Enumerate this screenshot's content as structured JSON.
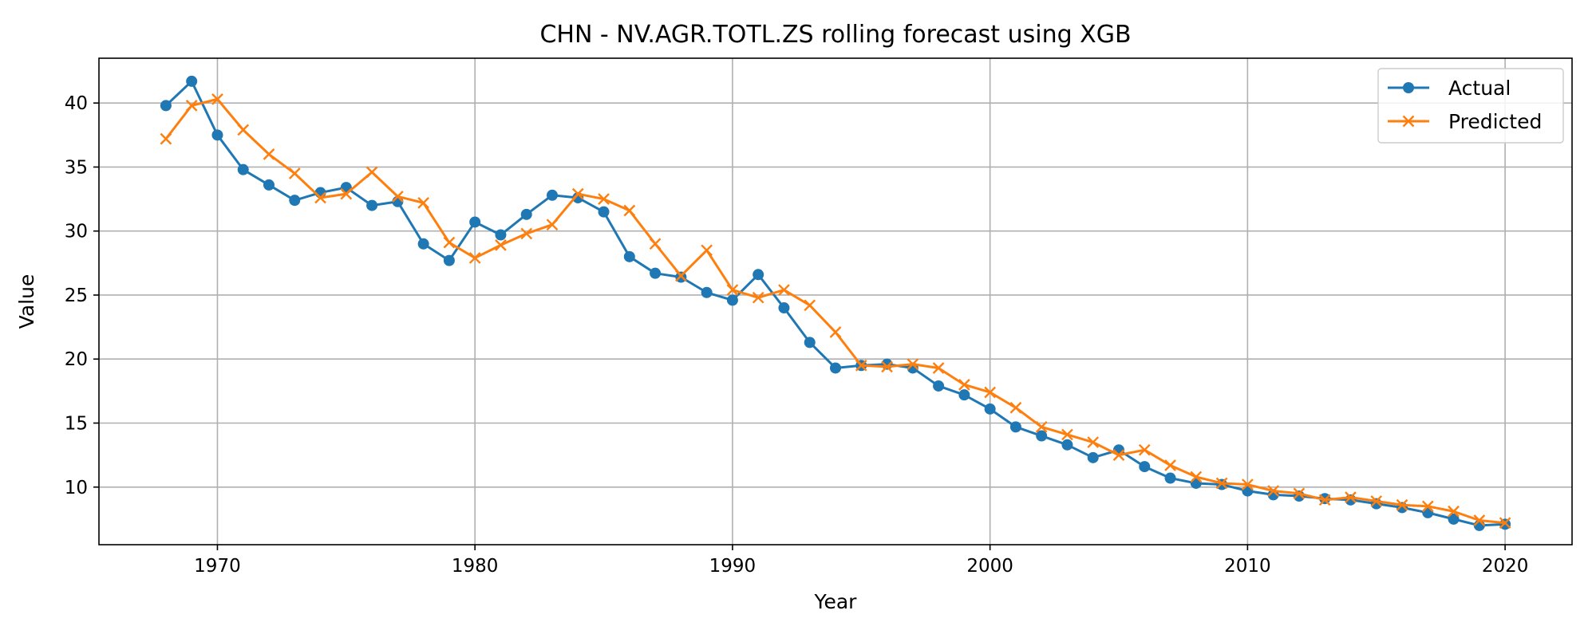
{
  "chart_data": {
    "type": "line",
    "title": "CHN - NV.AGR.TOTL.ZS rolling forecast using XGB",
    "xlabel": "Year",
    "ylabel": "Value",
    "xlim": [
      1965.4,
      2022.6
    ],
    "ylim": [
      5.5,
      43.5
    ],
    "xticks": [
      1970,
      1980,
      1990,
      2000,
      2010,
      2020
    ],
    "yticks": [
      10,
      15,
      20,
      25,
      30,
      35,
      40
    ],
    "grid": true,
    "legend_position": "top-right",
    "x": [
      1968,
      1969,
      1970,
      1971,
      1972,
      1973,
      1974,
      1975,
      1976,
      1977,
      1978,
      1979,
      1980,
      1981,
      1982,
      1983,
      1984,
      1985,
      1986,
      1987,
      1988,
      1989,
      1990,
      1991,
      1992,
      1993,
      1994,
      1995,
      1996,
      1997,
      1998,
      1999,
      2000,
      2001,
      2002,
      2003,
      2004,
      2005,
      2006,
      2007,
      2008,
      2009,
      2010,
      2011,
      2012,
      2013,
      2014,
      2015,
      2016,
      2017,
      2018,
      2019,
      2020
    ],
    "series": [
      {
        "name": "Actual",
        "color": "#1f77b4",
        "marker": "circle",
        "values": [
          39.8,
          41.7,
          37.5,
          34.8,
          33.6,
          32.4,
          33.0,
          33.4,
          32.0,
          32.3,
          29.0,
          27.7,
          30.7,
          29.7,
          31.3,
          32.8,
          32.6,
          31.5,
          28.0,
          26.7,
          26.4,
          25.2,
          24.6,
          26.6,
          24.0,
          21.3,
          19.3,
          19.5,
          19.6,
          19.3,
          17.9,
          17.2,
          16.1,
          14.7,
          14.0,
          13.3,
          12.3,
          12.9,
          11.6,
          10.7,
          10.3,
          10.2,
          9.7,
          9.4,
          9.3,
          9.1,
          9.0,
          8.7,
          8.4,
          8.0,
          7.5,
          7.0,
          7.1
        ]
      },
      {
        "name": "Predicted",
        "color": "#ff7f0e",
        "marker": "x",
        "values": [
          37.2,
          39.8,
          40.3,
          37.9,
          36.0,
          34.5,
          32.6,
          32.9,
          34.6,
          32.7,
          32.2,
          29.1,
          27.9,
          28.9,
          29.8,
          30.5,
          32.9,
          32.5,
          31.6,
          29.0,
          26.5,
          28.5,
          25.4,
          24.8,
          25.4,
          24.2,
          22.1,
          19.5,
          19.4,
          19.6,
          19.3,
          18.0,
          17.4,
          16.2,
          14.7,
          14.1,
          13.5,
          12.5,
          12.9,
          11.7,
          10.8,
          10.3,
          10.2,
          9.7,
          9.5,
          9.0,
          9.2,
          8.9,
          8.6,
          8.5,
          8.1,
          7.4,
          7.2
        ]
      }
    ]
  }
}
